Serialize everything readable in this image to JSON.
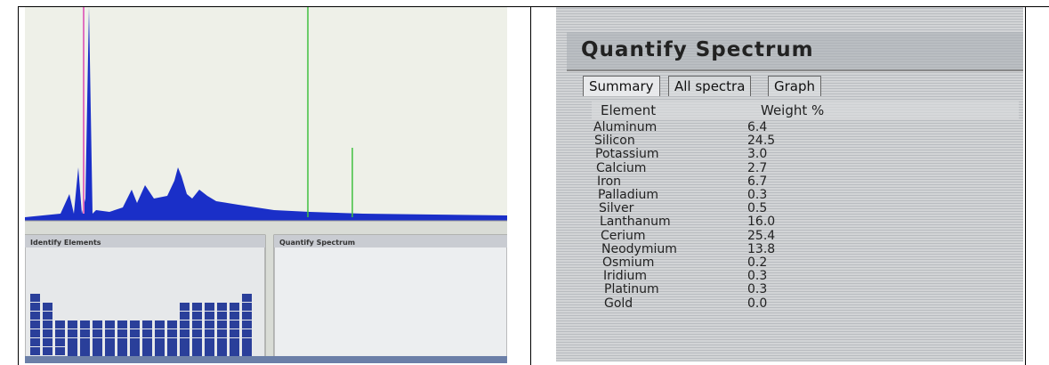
{
  "left_screen": {
    "identify_panel": {
      "title": "Identify Elements"
    },
    "quantify_panel": {
      "title": "Quantify Spectrum"
    }
  },
  "right_screen": {
    "title": "Quantify Spectrum",
    "tabs": [
      "Summary",
      "All spectra",
      "Graph"
    ],
    "table": {
      "header": [
        "Element",
        "Weight %"
      ],
      "rows": [
        [
          "Aluminum",
          "6.4"
        ],
        [
          "Silicon",
          "24.5"
        ],
        [
          "Potassium",
          "3.0"
        ],
        [
          "Calcium",
          "2.7"
        ],
        [
          "Iron",
          "6.7"
        ],
        [
          "Palladium",
          "0.3"
        ],
        [
          "Silver",
          "0.5"
        ],
        [
          "Lanthanum",
          "16.0"
        ],
        [
          "Cerium",
          "25.4"
        ],
        [
          "Neodymium",
          "13.8"
        ],
        [
          "Osmium",
          "0.2"
        ],
        [
          "Iridium",
          "0.3"
        ],
        [
          "Platinum",
          "0.3"
        ],
        [
          "Gold",
          "0.0"
        ]
      ]
    }
  }
}
